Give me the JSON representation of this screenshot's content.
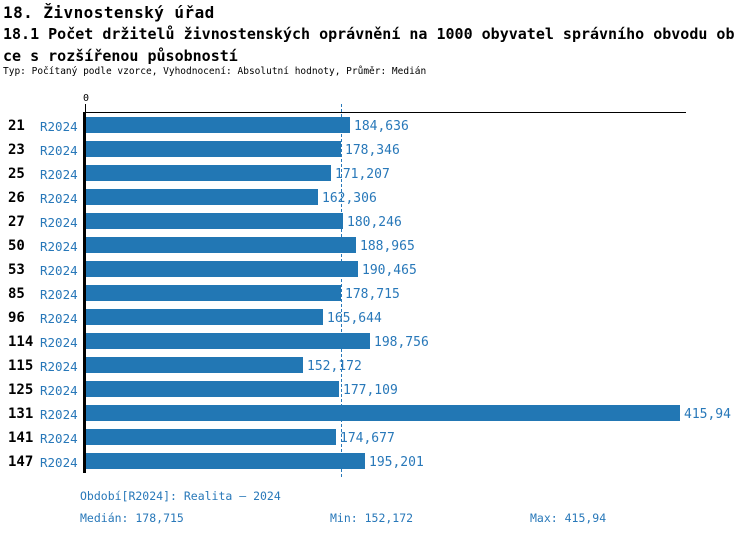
{
  "header": {
    "title": "18. Živnostenský úřad",
    "subtitle_lines": [
      "18.1 Počet držitelů živnostenských oprávnění na 1000 obyvatel správního obvodu ob",
      "ce s rozšířenou působností"
    ],
    "meta": "Typ: Počítaný podle vzorce, Vyhodnocení: Absolutní hodnoty, Průměr: Medián"
  },
  "colors": {
    "bar": "#2277b4",
    "blue_text": "#2878b9",
    "axis": "#000000"
  },
  "chart_data": {
    "type": "bar",
    "orientation": "horizontal",
    "title": "18.1 Počet držitelů živnostenských oprávnění na 1000 obyvatel správního obvodu obce s rozšířenou působností",
    "series_label": "R2024",
    "categories": [
      "21",
      "23",
      "25",
      "26",
      "27",
      "50",
      "53",
      "85",
      "96",
      "114",
      "115",
      "125",
      "131",
      "141",
      "147"
    ],
    "values": [
      184.636,
      178.346,
      171.207,
      162.306,
      180.246,
      188.965,
      190.465,
      178.715,
      165.644,
      198.756,
      152.172,
      177.109,
      415.94,
      174.677,
      195.201
    ],
    "value_labels": [
      "184,636",
      "178,346",
      "171,207",
      "162,306",
      "180,246",
      "188,965",
      "190,465",
      "178,715",
      "165,644",
      "198,756",
      "152,172",
      "177,109",
      "415,94",
      "174,677",
      "195,201"
    ],
    "xlabel": "",
    "ylabel": "",
    "xlim": [
      0,
      420
    ],
    "zero_tick_label": "0",
    "grid": false,
    "median": 178.715,
    "median_line": "dashed-vertical"
  },
  "footer": {
    "period": "Období[R2024]: Realita – 2024",
    "median": "Medián: 178,715",
    "min": "Min: 152,172",
    "max": "Max: 415,94"
  }
}
